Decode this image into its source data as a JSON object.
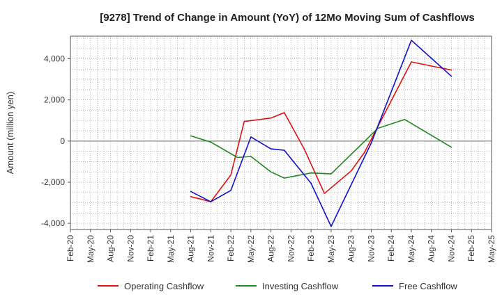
{
  "chart_data": {
    "type": "line",
    "title": "[9278]  Trend of Change in Amount (YoY) of 12Mo Moving Sum of Cashflows",
    "xlabel": "",
    "ylabel": "Amount (million yen)",
    "ylim": [
      -4300,
      5100
    ],
    "yticks": [
      4000,
      2000,
      0,
      -2000,
      -4000
    ],
    "ytick_labels": [
      "4,000",
      "2,000",
      "0",
      "-2,000",
      "-4,000"
    ],
    "categories": [
      "Feb-20",
      "May-20",
      "Aug-20",
      "Nov-20",
      "Feb-21",
      "May-21",
      "Aug-21",
      "Nov-21",
      "Feb-22",
      "May-22",
      "Aug-22",
      "Nov-22",
      "Feb-23",
      "May-23",
      "Aug-23",
      "Nov-23",
      "Feb-24",
      "May-24",
      "Aug-24",
      "Nov-24",
      "Feb-25",
      "May-25"
    ],
    "grid": true,
    "legend_position": "bottom",
    "series": [
      {
        "name": "Operating Cashflow",
        "color": "#dd1111",
        "points": [
          {
            "x": "Aug-21",
            "y": -2700
          },
          {
            "x": "Nov-21",
            "y": -2950
          },
          {
            "x": "Feb-22",
            "y": -1650
          },
          {
            "x": "Apr-22",
            "y": 950
          },
          {
            "x": "Aug-22",
            "y": 1120
          },
          {
            "x": "Oct-22",
            "y": 1380
          },
          {
            "x": "Jan-23",
            "y": -400
          },
          {
            "x": "Apr-23",
            "y": -2550
          },
          {
            "x": "Aug-23",
            "y": -1450
          },
          {
            "x": "Oct-23",
            "y": -550
          },
          {
            "x": "May-24",
            "y": 3850
          },
          {
            "x": "Nov-24",
            "y": 3450
          }
        ]
      },
      {
        "name": "Investing Cashflow",
        "color": "#228822",
        "points": [
          {
            "x": "Aug-21",
            "y": 250
          },
          {
            "x": "Nov-21",
            "y": -50
          },
          {
            "x": "Mar-22",
            "y": -800
          },
          {
            "x": "May-22",
            "y": -750
          },
          {
            "x": "Aug-22",
            "y": -1500
          },
          {
            "x": "Oct-22",
            "y": -1800
          },
          {
            "x": "Feb-23",
            "y": -1550
          },
          {
            "x": "May-23",
            "y": -1600
          },
          {
            "x": "Dec-23",
            "y": 620
          },
          {
            "x": "Apr-24",
            "y": 1050
          },
          {
            "x": "Nov-24",
            "y": -300
          }
        ]
      },
      {
        "name": "Free Cashflow",
        "color": "#1111cc",
        "points": [
          {
            "x": "Aug-21",
            "y": -2450
          },
          {
            "x": "Nov-21",
            "y": -2950
          },
          {
            "x": "Feb-22",
            "y": -2400
          },
          {
            "x": "May-22",
            "y": 200
          },
          {
            "x": "Aug-22",
            "y": -380
          },
          {
            "x": "Oct-22",
            "y": -450
          },
          {
            "x": "Feb-23",
            "y": -2050
          },
          {
            "x": "May-23",
            "y": -4150
          },
          {
            "x": "Nov-23",
            "y": -100
          },
          {
            "x": "May-24",
            "y": 4900
          },
          {
            "x": "Nov-24",
            "y": 3150
          }
        ]
      }
    ]
  }
}
